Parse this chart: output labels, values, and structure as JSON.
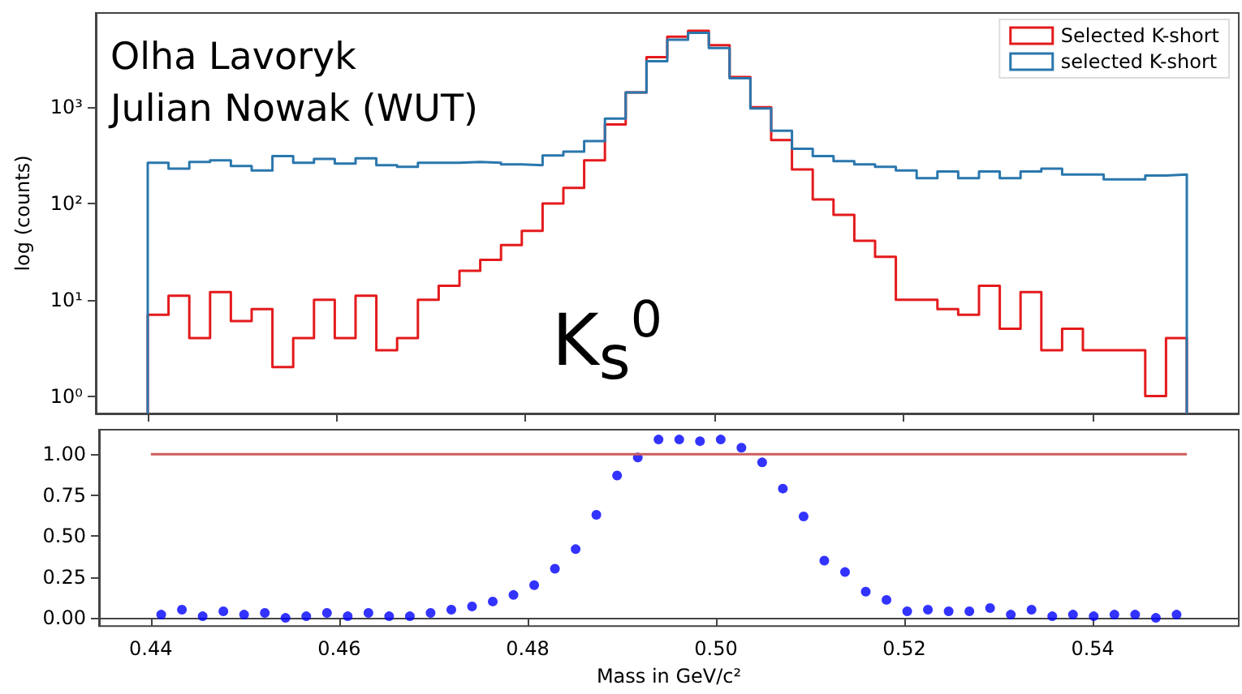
{
  "chart_data": [
    {
      "type": "histogram",
      "ylabel": "log (counts)",
      "log": "y",
      "legend": "top right",
      "tick_labels": "y",
      "annotations": [
        "Olha Lavoryk",
        "Julian Nowak (WUT)",
        "K$_{s}$$^{0}$"
      ],
      "bins": [
        0.44,
        0.4422,
        0.4444,
        0.4466,
        0.4488,
        0.451,
        0.4532,
        0.4554,
        0.4576,
        0.4598,
        0.462,
        0.4642,
        0.4664,
        0.4686,
        0.4708,
        0.473,
        0.4752,
        0.4774,
        0.4796,
        0.4818,
        0.484,
        0.4862,
        0.4884,
        0.4906,
        0.4928,
        0.495,
        0.4972,
        0.4994,
        0.5016,
        0.5038,
        0.506,
        0.5082,
        0.5104,
        0.5126,
        0.5148,
        0.517,
        0.5192,
        0.5214,
        0.5236,
        0.5258,
        0.528,
        0.5302,
        0.5324,
        0.5346,
        0.5368,
        0.539,
        0.5412,
        0.5434,
        0.5456,
        0.5478,
        0.55
      ],
      "series": [
        {
          "name": "Selected K-short",
          "color": "#e41a1c",
          "values": [
            7,
            11,
            4,
            12,
            6,
            8,
            2,
            4,
            10,
            4,
            11,
            3,
            4,
            10,
            14,
            20,
            26,
            37,
            52,
            100,
            145,
            280,
            660,
            1420,
            3300,
            5400,
            6200,
            4400,
            2050,
            1000,
            455,
            225,
            110,
            76,
            41,
            28,
            10,
            10,
            8,
            7,
            14,
            5,
            12,
            3,
            5,
            3,
            3,
            3,
            1,
            4
          ]
        },
        {
          "name": "selected K-short",
          "color": "#2a77ad",
          "values": [
            265,
            230,
            270,
            280,
            245,
            220,
            310,
            265,
            290,
            260,
            295,
            250,
            240,
            265,
            265,
            270,
            265,
            255,
            250,
            315,
            345,
            445,
            760,
            1420,
            3000,
            5000,
            5900,
            4100,
            2000,
            970,
            570,
            370,
            310,
            275,
            255,
            240,
            220,
            183,
            215,
            183,
            215,
            183,
            215,
            230,
            200,
            200,
            178,
            178,
            195,
            200
          ]
        }
      ],
      "xlim": [
        0.4345,
        0.5555
      ],
      "xticks": [
        {
          "value": 0.44,
          "label": null
        },
        {
          "value": 0.46,
          "label": null
        },
        {
          "value": 0.48,
          "label": null
        },
        {
          "value": 0.5,
          "label": null
        },
        {
          "value": 0.52,
          "label": null
        },
        {
          "value": 0.54,
          "label": null
        }
      ],
      "ylim": [
        0.66,
        9500
      ],
      "yticks": [
        {
          "value": 1,
          "label": "10⁰"
        },
        {
          "value": 10,
          "label": "10¹"
        },
        {
          "value": 100,
          "label": "10²"
        },
        {
          "value": 1000,
          "label": "10³"
        }
      ]
    },
    {
      "type": "scatter",
      "xlabel": "Mass in GeV/c²",
      "x": [
        0.4411,
        0.4433,
        0.4455,
        0.4477,
        0.4499,
        0.4521,
        0.4543,
        0.4565,
        0.4587,
        0.4609,
        0.4631,
        0.4653,
        0.4675,
        0.4697,
        0.4719,
        0.4741,
        0.4763,
        0.4785,
        0.4807,
        0.4829,
        0.4851,
        0.4873,
        0.4895,
        0.4917,
        0.4939,
        0.4961,
        0.4983,
        0.5005,
        0.5027,
        0.5049,
        0.5071,
        0.5093,
        0.5115,
        0.5137,
        0.5159,
        0.5181,
        0.5203,
        0.5225,
        0.5247,
        0.5269,
        0.5291,
        0.5313,
        0.5335,
        0.5357,
        0.5379,
        0.5401,
        0.5423,
        0.5445,
        0.5467,
        0.5489
      ],
      "series": [
        {
          "color": "#0000ff",
          "marker": "circle",
          "values": [
            0.02,
            0.05,
            0.01,
            0.04,
            0.02,
            0.03,
            0,
            0.01,
            0.03,
            0.01,
            0.03,
            0.01,
            0.01,
            0.03,
            0.05,
            0.07,
            0.1,
            0.14,
            0.2,
            0.3,
            0.42,
            0.63,
            0.87,
            0.98,
            1.09,
            1.09,
            1.08,
            1.09,
            1.04,
            0.95,
            0.79,
            0.62,
            0.35,
            0.28,
            0.16,
            0.11,
            0.04,
            0.05,
            0.04,
            0.04,
            0.06,
            0.02,
            0.05,
            0.01,
            0.02,
            0.01,
            0.02,
            0.02,
            0,
            0.02
          ]
        },
        {
          "type": "line",
          "marker": "none",
          "color": "#cd5c5c",
          "x": [
            0.44,
            0.55
          ],
          "values": [
            1,
            1
          ]
        }
      ],
      "xlim": [
        0.4345,
        0.5555
      ],
      "xticks": [
        {
          "value": 0.44,
          "label": "0.44"
        },
        {
          "value": 0.46,
          "label": "0.46"
        },
        {
          "value": 0.48,
          "label": "0.48"
        },
        {
          "value": 0.5,
          "label": "0.50"
        },
        {
          "value": 0.52,
          "label": "0.52"
        },
        {
          "value": 0.54,
          "label": "0.54"
        }
      ],
      "ylim": [
        -0.05,
        1.15
      ],
      "yticks": [
        {
          "value": 0,
          "label": "0.00"
        },
        {
          "value": 0.25,
          "label": "0.25"
        },
        {
          "value": 0.5,
          "label": "0.50"
        },
        {
          "value": 0.75,
          "label": "0.75"
        },
        {
          "value": 1,
          "label": "1.00"
        }
      ]
    }
  ]
}
